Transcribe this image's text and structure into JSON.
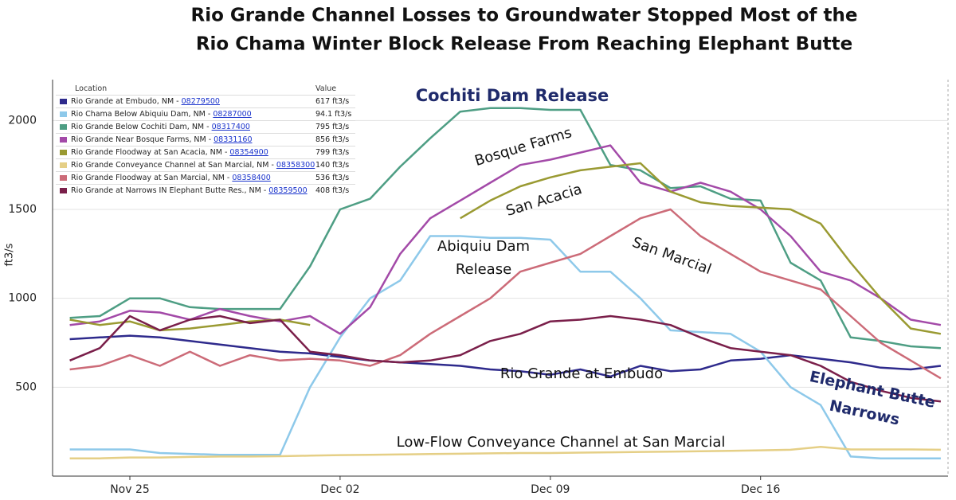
{
  "chart_data": {
    "type": "line",
    "title": [
      "Rio Grande Channel Losses to Groundwater Stopped Most of the",
      "Rio Chama Winter Block Release From Reaching Elephant Butte"
    ],
    "y_label": "ft3/s",
    "categories": [
      null,
      null,
      "Nov 25",
      null,
      null,
      null,
      null,
      null,
      null,
      "Dec 02",
      null,
      null,
      null,
      null,
      null,
      null,
      "Dec 09",
      null,
      null,
      null,
      null,
      null,
      null,
      "Dec 16",
      null,
      null,
      null,
      null,
      null,
      null
    ],
    "ylim": [
      0,
      2230
    ],
    "yticks": [
      500,
      1000,
      1500,
      2000
    ],
    "grid": true,
    "legend_header": [
      "Location",
      "Value"
    ],
    "series": [
      {
        "name": "Rio Grande at Embudo, NM - ",
        "site": "08279500",
        "current": "617 ft3/s",
        "color": "#2e2a8c",
        "values": [
          770,
          780,
          790,
          780,
          760,
          740,
          720,
          700,
          690,
          670,
          650,
          640,
          630,
          620,
          600,
          590,
          570,
          600,
          560,
          620,
          590,
          600,
          650,
          660,
          680,
          660,
          640,
          610,
          600,
          620
        ]
      },
      {
        "name": "Rio Chama Below Abiquiu Dam, NM - ",
        "site": "08287000",
        "current": "94.1 ft3/s",
        "color": "#8ec9ea",
        "values": [
          150,
          150,
          150,
          130,
          125,
          120,
          120,
          120,
          500,
          780,
          1000,
          1100,
          1350,
          1350,
          1340,
          1340,
          1330,
          1150,
          1150,
          1000,
          820,
          810,
          800,
          700,
          500,
          400,
          110,
          100,
          100,
          100
        ]
      },
      {
        "name": "Rio Grande Below Cochiti Dam, NM - ",
        "site": "08317400",
        "current": "795 ft3/s",
        "color": "#4e9e84",
        "values": [
          890,
          900,
          1000,
          1000,
          950,
          940,
          940,
          940,
          1180,
          1500,
          1560,
          1740,
          1900,
          2050,
          2070,
          2070,
          2060,
          2060,
          1750,
          1720,
          1620,
          1630,
          1560,
          1550,
          1200,
          1100,
          780,
          760,
          730,
          720
        ]
      },
      {
        "name": "Rio Grande Near Bosque Farms, NM - ",
        "site": "08331160",
        "current": "856 ft3/s",
        "color": "#a34aa8",
        "values": [
          850,
          870,
          930,
          920,
          880,
          940,
          900,
          870,
          900,
          800,
          950,
          1250,
          1450,
          1550,
          1650,
          1750,
          1780,
          1820,
          1860,
          1650,
          1600,
          1650,
          1600,
          1500,
          1350,
          1150,
          1100,
          1000,
          880,
          850
        ]
      },
      {
        "name": "Rio Grande Floodway at San Acacia, NM - ",
        "site": "08354900",
        "current": "799 ft3/s",
        "color": "#9a9a32",
        "values": [
          880,
          850,
          870,
          820,
          830,
          850,
          870,
          880,
          850,
          null,
          null,
          null,
          null,
          1450,
          1550,
          1630,
          1680,
          1720,
          1740,
          1760,
          1600,
          1540,
          1520,
          1510,
          1500,
          1420,
          1200,
          1000,
          830,
          800
        ]
      },
      {
        "name": "Rio Grande Conveyance Channel at San Marcial, NM - ",
        "site": "08358300",
        "current": "140 ft3/s",
        "color": "#e5cf86",
        "values": [
          100,
          100,
          105,
          105,
          108,
          110,
          110,
          112,
          115,
          118,
          120,
          122,
          124,
          126,
          128,
          130,
          130,
          132,
          134,
          136,
          138,
          140,
          142,
          145,
          148,
          165,
          150,
          150,
          150,
          148
        ]
      },
      {
        "name": "Rio Grande Floodway at San Marcial, NM - ",
        "site": "08358400",
        "current": "536 ft3/s",
        "color": "#cc6b78",
        "values": [
          600,
          620,
          680,
          620,
          700,
          620,
          680,
          650,
          660,
          650,
          620,
          680,
          800,
          900,
          1000,
          1150,
          1200,
          1250,
          1350,
          1450,
          1500,
          1350,
          1250,
          1150,
          1100,
          1050,
          900,
          750,
          650,
          550
        ]
      },
      {
        "name": "Rio Grande at Narrows IN Elephant Butte Res., NM - ",
        "site": "08359500",
        "current": "408 ft3/s",
        "color": "#7a1f4a",
        "values": [
          650,
          720,
          900,
          820,
          880,
          900,
          860,
          880,
          700,
          680,
          650,
          640,
          650,
          680,
          760,
          800,
          870,
          880,
          900,
          880,
          850,
          780,
          720,
          700,
          680,
          620,
          530,
          480,
          440,
          420
        ]
      }
    ],
    "annotations": [
      {
        "lines": [
          "Cochiti Dam Release"
        ],
        "color": "#1f2a6b",
        "bold": true
      },
      {
        "lines": [
          "Bosque Farms"
        ],
        "color": "#111111",
        "bold": false
      },
      {
        "lines": [
          "San Acacia"
        ],
        "color": "#111111",
        "bold": false
      },
      {
        "lines": [
          "Abiquiu Dam",
          "Release"
        ],
        "color": "#111111",
        "bold": false
      },
      {
        "lines": [
          "San Marcial"
        ],
        "color": "#111111",
        "bold": false
      },
      {
        "lines": [
          "Rio Grande at Embudo"
        ],
        "color": "#111111",
        "bold": false
      },
      {
        "lines": [
          "Elephant Butte",
          "Narrows"
        ],
        "color": "#1f2a6b",
        "bold": true
      },
      {
        "lines": [
          "Low-Flow Conveyance Channel at San Marcial"
        ],
        "color": "#111111",
        "bold": false
      }
    ]
  }
}
